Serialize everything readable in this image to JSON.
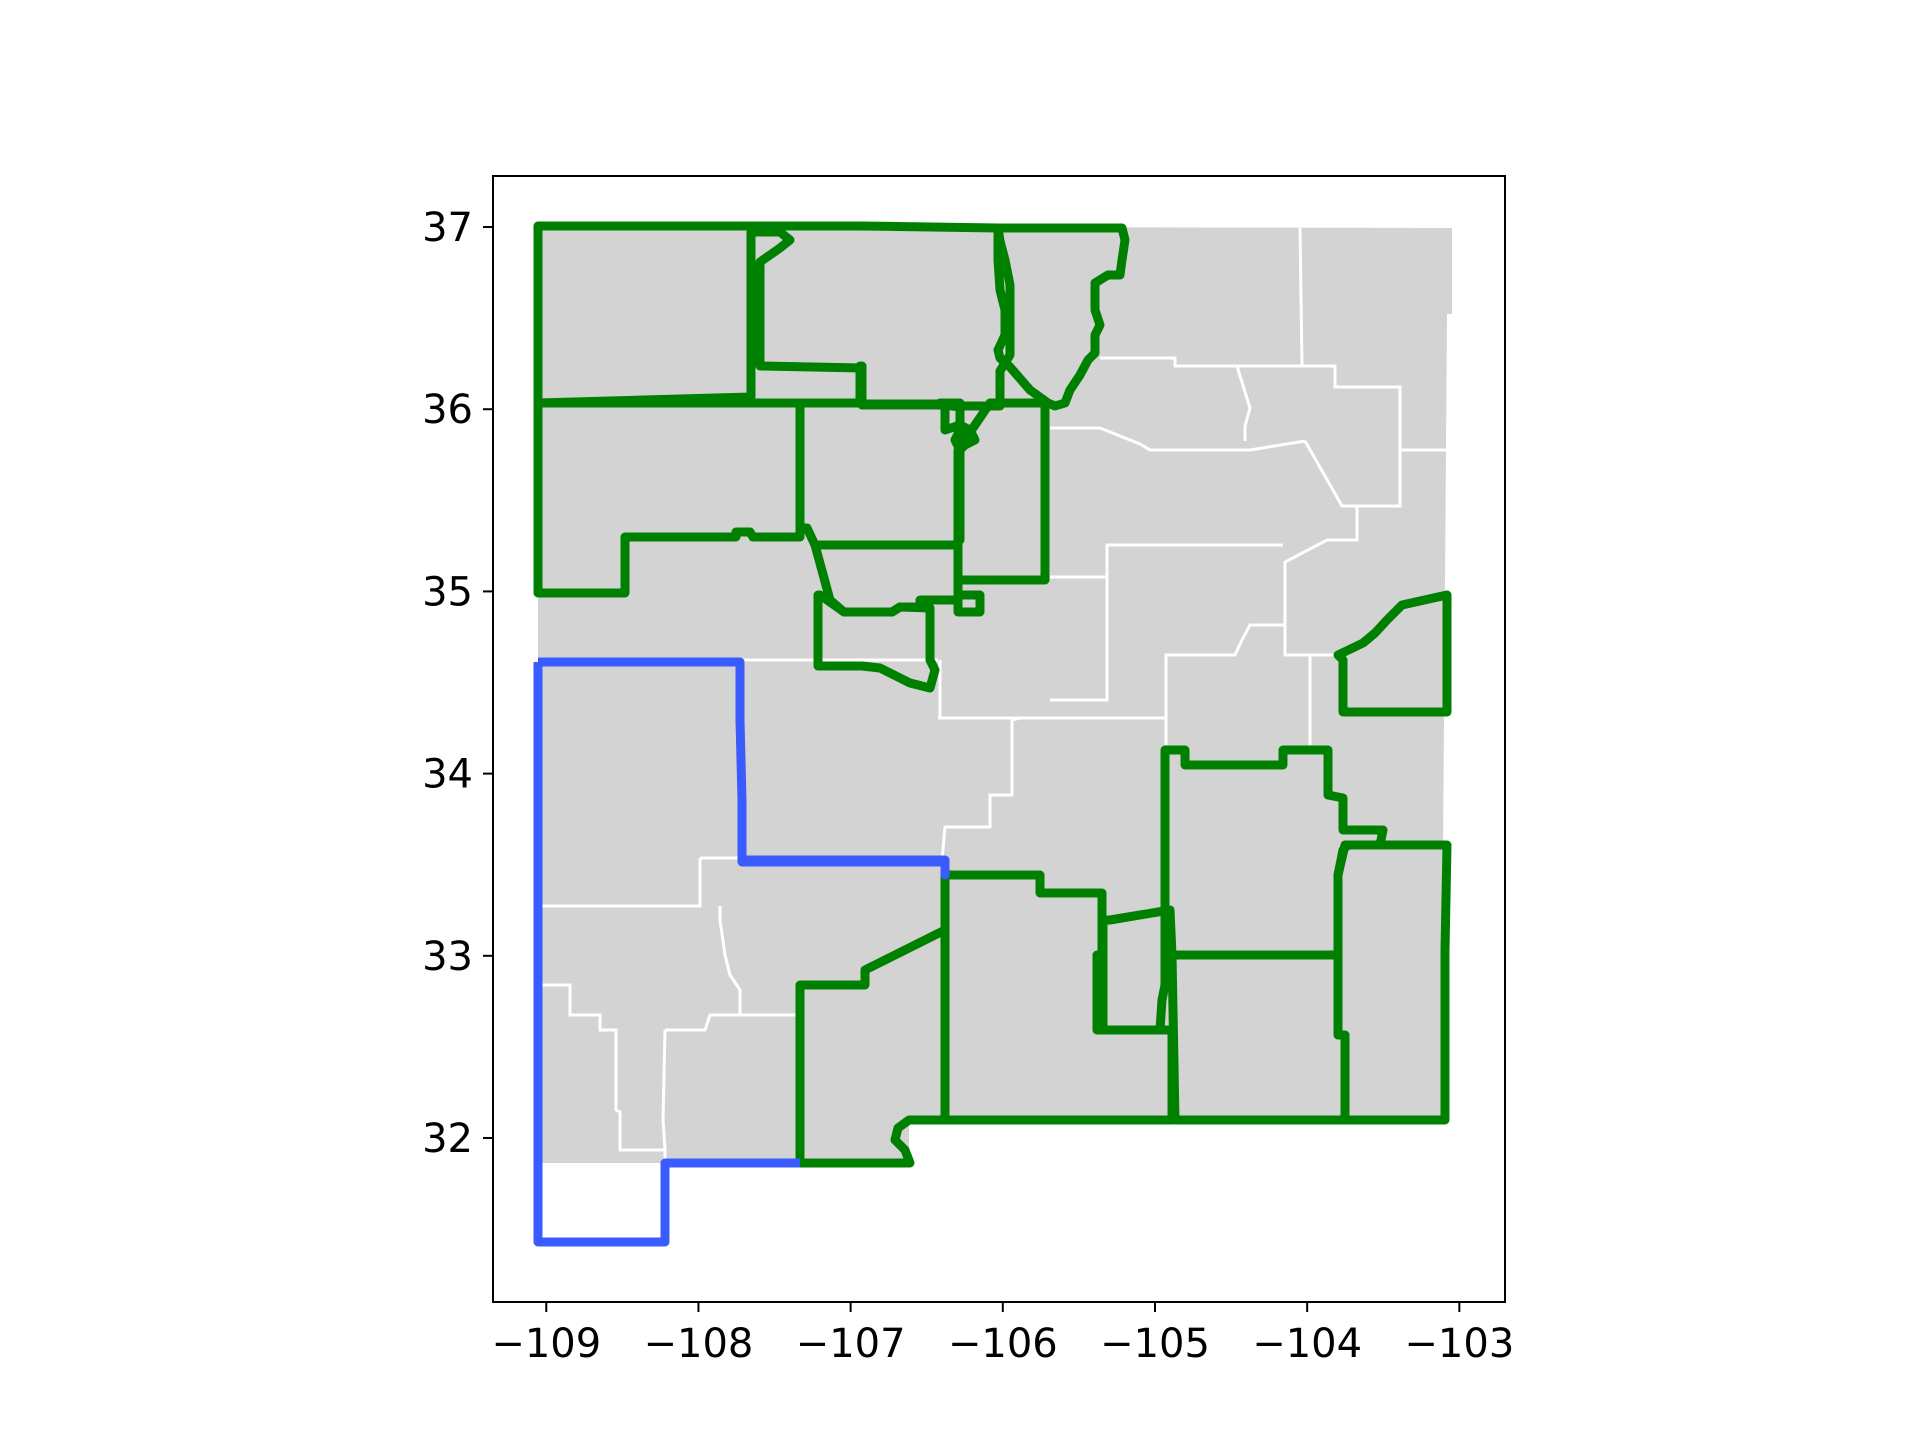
{
  "map": {
    "x_axis": {
      "range": [
        -109.35,
        -102.7
      ],
      "ticks": [
        -109,
        -108,
        -107,
        -106,
        -105,
        -104,
        -103
      ],
      "tick_labels": [
        "−109",
        "−108",
        "−107",
        "−106",
        "−105",
        "−104",
        "−103"
      ]
    },
    "y_axis": {
      "range": [
        31.1,
        37.28
      ],
      "ticks": [
        32,
        33,
        34,
        35,
        36,
        37
      ],
      "tick_labels": [
        "32",
        "33",
        "34",
        "35",
        "36",
        "37"
      ]
    },
    "colors": {
      "county_fill": "#d3d3d3",
      "county_border": "#ffffff",
      "highlight_primary": "#3a5cff",
      "highlight_secondary": "#008000",
      "background": "#ffffff",
      "axes": "#000000"
    },
    "regions": {
      "base_counties": "New Mexico county polygons (light gray, white borders)",
      "blue_outlined": 1,
      "green_outlined": 15
    }
  }
}
